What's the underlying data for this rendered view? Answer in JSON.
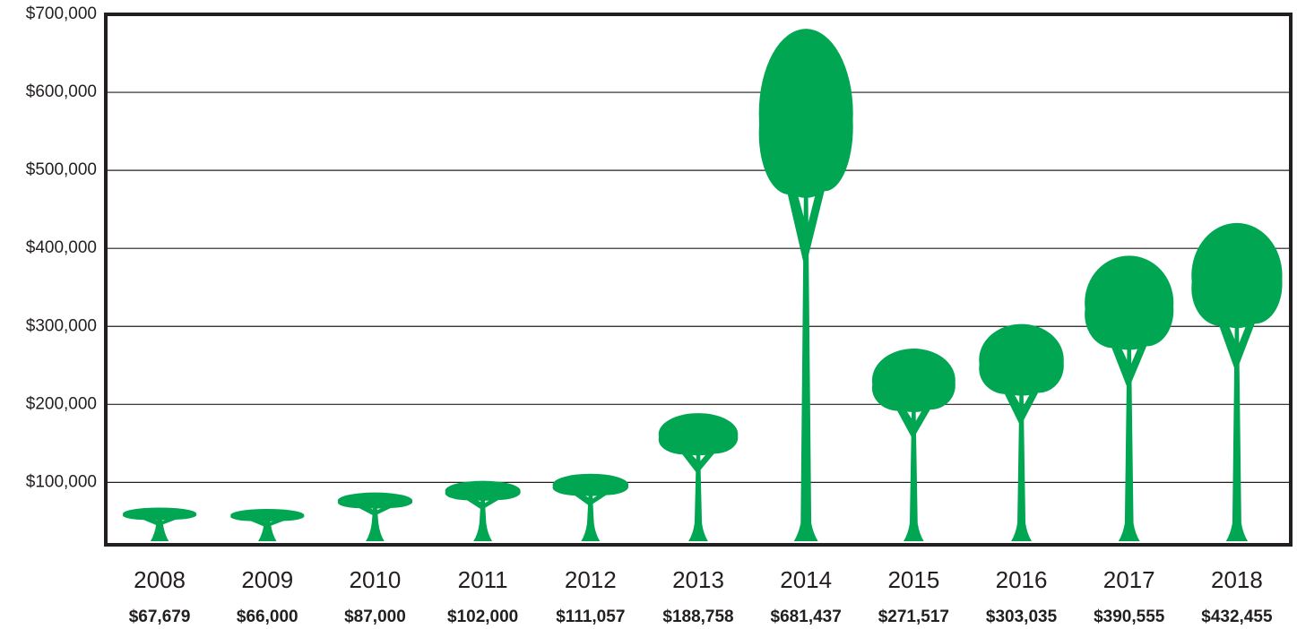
{
  "chart_data": {
    "type": "pictograph",
    "categories": [
      "2008",
      "2009",
      "2010",
      "2011",
      "2012",
      "2013",
      "2014",
      "2015",
      "2016",
      "2017",
      "2018"
    ],
    "values": [
      67679,
      66000,
      87000,
      102000,
      111057,
      188758,
      681437,
      271517,
      303035,
      390555,
      432455
    ],
    "value_labels": [
      "$67,679",
      "$66,000",
      "$87,000",
      "$102,000",
      "$111,057",
      "$188,758",
      "$681,437",
      "$271,517",
      "$303,035",
      "$390,555",
      "$432,455"
    ],
    "color": "#00a651",
    "ylim": [
      20000,
      700000
    ],
    "yticks": [
      {
        "value": 100000,
        "label": "$100,000"
      },
      {
        "value": 200000,
        "label": "$200,000"
      },
      {
        "value": 300000,
        "label": "$300,000"
      },
      {
        "value": 400000,
        "label": "$400,000"
      },
      {
        "value": 500000,
        "label": "$500,000"
      },
      {
        "value": 600000,
        "label": "$600,000"
      },
      {
        "value": 700000,
        "label": "$700,000"
      }
    ],
    "grid": true
  }
}
